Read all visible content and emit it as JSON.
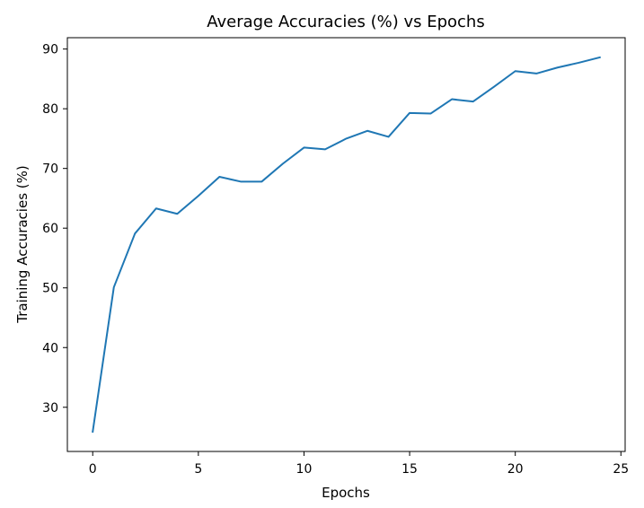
{
  "chart_data": {
    "type": "line",
    "title": "Average Accuracies (%) vs Epochs",
    "xlabel": "Epochs",
    "ylabel": "Training Accuracies (%)",
    "x": [
      0,
      1,
      2,
      3,
      4,
      5,
      6,
      7,
      8,
      9,
      10,
      11,
      12,
      13,
      14,
      15,
      16,
      17,
      18,
      19,
      20,
      21,
      22,
      23,
      24
    ],
    "series": [
      {
        "values": [
          25.9,
          50.1,
          59.1,
          63.3,
          62.4,
          65.4,
          68.6,
          67.8,
          67.8,
          70.8,
          73.5,
          73.2,
          75.0,
          76.3,
          75.3,
          79.3,
          79.2,
          81.6,
          81.2,
          83.7,
          86.3,
          85.9,
          86.9,
          87.7,
          88.6
        ],
        "color": "#1f77b4"
      }
    ],
    "xlim": [
      -1.2,
      25.2
    ],
    "ylim": [
      22.6,
      91.9
    ],
    "xticks": [
      0,
      5,
      10,
      15,
      20,
      25
    ],
    "yticks": [
      30,
      40,
      50,
      60,
      70,
      80,
      90
    ],
    "grid": false,
    "legend": "none"
  }
}
